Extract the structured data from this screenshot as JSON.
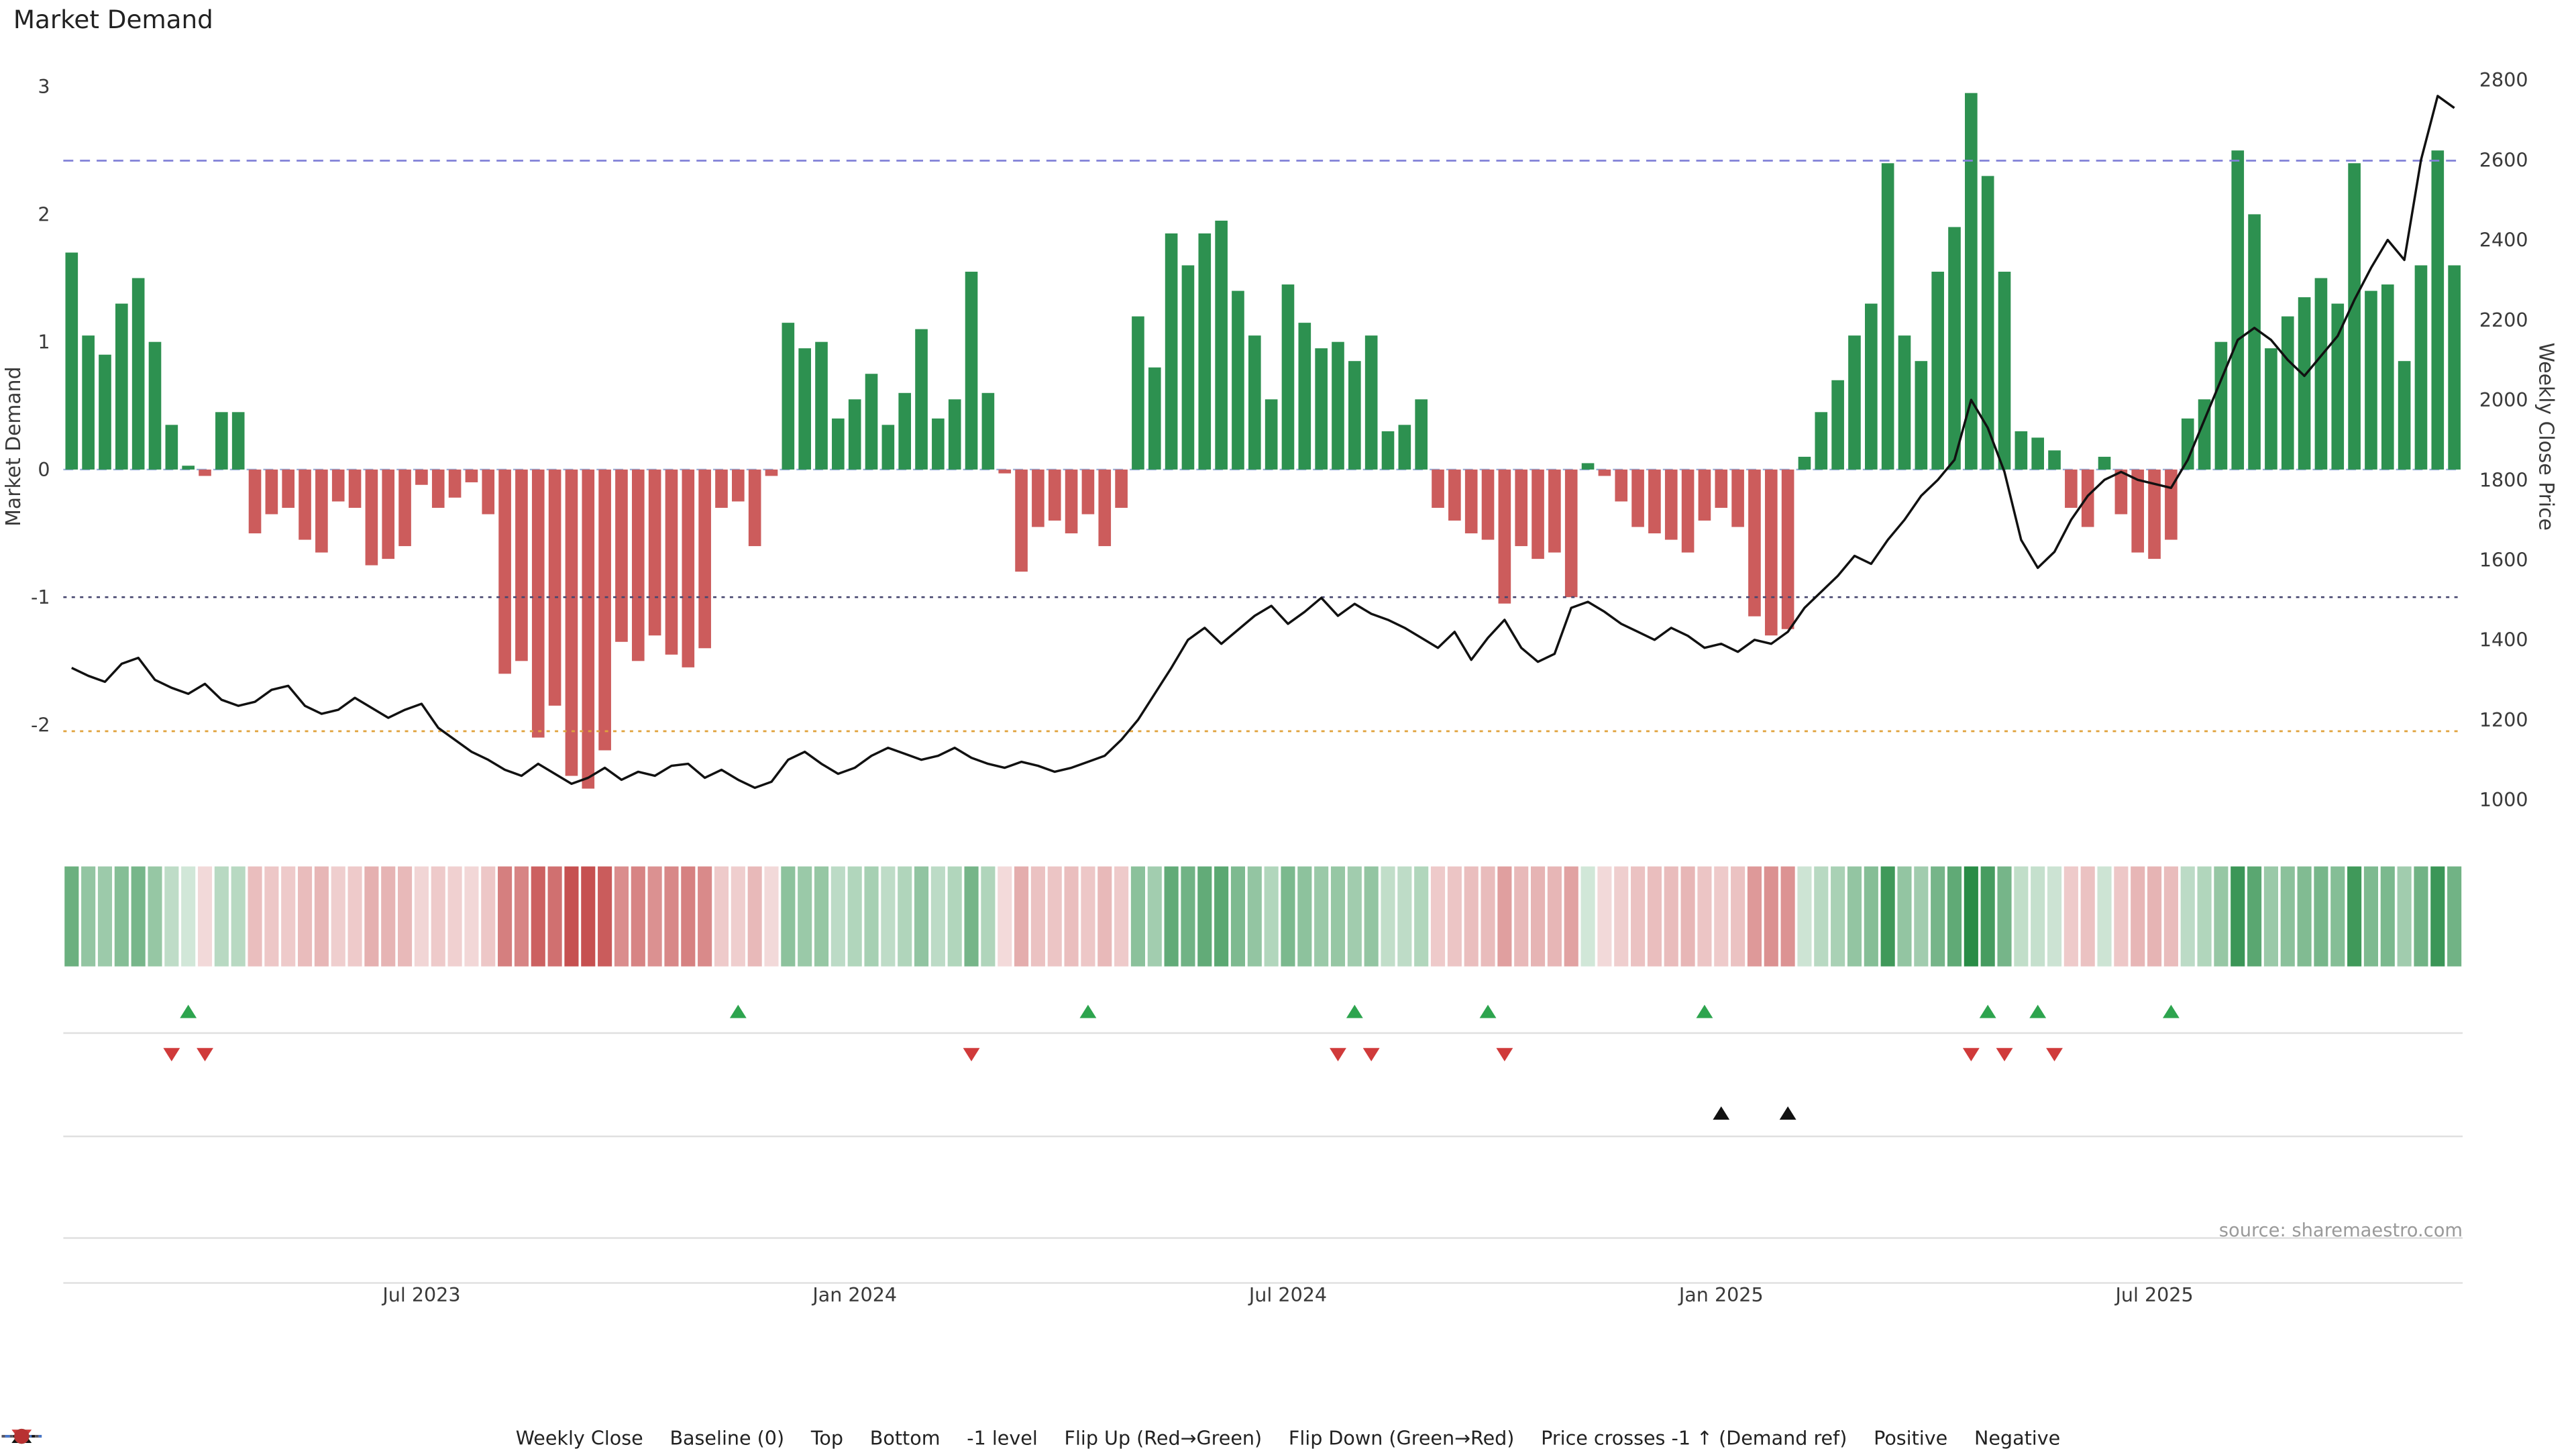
{
  "page": {
    "title": "Market Demand",
    "source": "source: sharemaestro.com"
  },
  "axes": {
    "left_label": "Market Demand",
    "right_label": "Weekly Close Price",
    "left_ticks": [
      3,
      2,
      1,
      0,
      -1,
      -2
    ],
    "right_ticks": [
      2800,
      2600,
      2400,
      2200,
      2000,
      1800,
      1600,
      1400,
      1200,
      1000
    ],
    "x_ticks": [
      {
        "label": "Jul 2023",
        "index": 21
      },
      {
        "label": "Jan 2024",
        "index": 47
      },
      {
        "label": "Jul 2024",
        "index": 73
      },
      {
        "label": "Jan 2025",
        "index": 99
      },
      {
        "label": "Jul 2025",
        "index": 125
      }
    ]
  },
  "colors": {
    "positive_bar": "#2d9150",
    "negative_bar": "#cc5c5c",
    "price_line": "#111111",
    "baseline": "#6f8fc9",
    "top_line": "#8181d8",
    "bottom_line": "#e0a23c",
    "minus1_line": "#45456e",
    "flip_up": "#2da44e",
    "flip_down": "#d03a3a",
    "price_cross": "#111111",
    "panel_line": "#e0e0e0",
    "tick_text": "#3a3a3a",
    "source_text": "#9a9a9a"
  },
  "legend": [
    {
      "label": "Weekly Close",
      "glyph": "solid-line",
      "color": "#111111"
    },
    {
      "label": "Baseline (0)",
      "glyph": "dashed-line",
      "color": "#4878cf"
    },
    {
      "label": "Top",
      "glyph": "dotted-line",
      "color": "#9999aa"
    },
    {
      "label": "Bottom",
      "glyph": "dotted-line",
      "color": "#dd9933"
    },
    {
      "label": "-1 level",
      "glyph": "dotted-line",
      "color": "#555566"
    },
    {
      "label": "Flip Up (Red→Green)",
      "glyph": "tri-up",
      "color": "#2da44e"
    },
    {
      "label": "Flip Down (Green→Red)",
      "glyph": "tri-down",
      "color": "#d03a3a"
    },
    {
      "label": "Price crosses -1 ↑ (Demand ref)",
      "glyph": "tri-up",
      "color": "#111111"
    },
    {
      "label": "Positive",
      "glyph": "dot",
      "color": "#2d9150"
    },
    {
      "label": "Negative",
      "glyph": "dot",
      "color": "#b83232"
    }
  ],
  "chart_data": {
    "type": "bar+line",
    "title": "Market Demand",
    "ylabel_left": "Market Demand",
    "ylabel_right": "Weekly Close Price",
    "ylim_left": [
      -2.6,
      3.05
    ],
    "ylim_right": [
      1000,
      2800
    ],
    "ref_lines": {
      "baseline": 0,
      "top": 2.42,
      "bottom": -2.05,
      "minus1": -1
    },
    "series": [
      {
        "name": "Market Demand",
        "type": "bar",
        "axis": "left",
        "values": [
          1.7,
          1.05,
          0.9,
          1.3,
          1.5,
          1.0,
          0.35,
          0.03,
          -0.05,
          0.45,
          0.45,
          -0.5,
          -0.35,
          -0.3,
          -0.55,
          -0.65,
          -0.25,
          -0.3,
          -0.75,
          -0.7,
          -0.6,
          -0.12,
          -0.3,
          -0.22,
          -0.1,
          -0.35,
          -1.6,
          -1.5,
          -2.1,
          -1.85,
          -2.4,
          -2.5,
          -2.2,
          -1.35,
          -1.5,
          -1.3,
          -1.45,
          -1.55,
          -1.4,
          -0.3,
          -0.25,
          -0.6,
          -0.05,
          1.15,
          0.95,
          1.0,
          0.4,
          0.55,
          0.75,
          0.35,
          0.6,
          1.1,
          0.4,
          0.55,
          1.55,
          0.6,
          -0.03,
          -0.8,
          -0.45,
          -0.4,
          -0.5,
          -0.35,
          -0.6,
          -0.3,
          1.2,
          0.8,
          1.85,
          1.6,
          1.85,
          1.95,
          1.4,
          1.05,
          0.55,
          1.45,
          1.15,
          0.95,
          1.0,
          0.85,
          1.05,
          0.3,
          0.35,
          0.55,
          -0.3,
          -0.4,
          -0.5,
          -0.55,
          -1.05,
          -0.6,
          -0.7,
          -0.65,
          -1.0,
          0.05,
          -0.05,
          -0.25,
          -0.45,
          -0.5,
          -0.55,
          -0.65,
          -0.4,
          -0.3,
          -0.45,
          -1.15,
          -1.3,
          -1.25,
          0.1,
          0.45,
          0.7,
          1.05,
          1.3,
          2.4,
          1.05,
          0.85,
          1.55,
          1.9,
          2.95,
          2.3,
          1.55,
          0.3,
          0.25,
          0.15,
          -0.3,
          -0.45,
          0.1,
          -0.35,
          -0.65,
          -0.7,
          -0.55,
          0.4,
          0.55,
          1.0,
          2.5,
          2.0,
          0.95,
          1.2,
          1.35,
          1.5,
          1.3,
          2.4,
          1.4,
          1.45,
          0.85,
          1.6,
          2.5,
          1.6
        ]
      },
      {
        "name": "Weekly Close",
        "type": "line",
        "axis": "right",
        "values": [
          1330,
          1310,
          1295,
          1340,
          1355,
          1300,
          1280,
          1265,
          1290,
          1250,
          1235,
          1245,
          1275,
          1285,
          1235,
          1215,
          1225,
          1255,
          1230,
          1205,
          1225,
          1240,
          1180,
          1150,
          1120,
          1100,
          1075,
          1060,
          1090,
          1065,
          1040,
          1055,
          1080,
          1050,
          1070,
          1060,
          1085,
          1090,
          1055,
          1075,
          1050,
          1030,
          1045,
          1100,
          1120,
          1090,
          1065,
          1080,
          1110,
          1130,
          1115,
          1100,
          1110,
          1130,
          1105,
          1090,
          1080,
          1095,
          1085,
          1070,
          1080,
          1095,
          1110,
          1150,
          1200,
          1265,
          1330,
          1400,
          1430,
          1390,
          1425,
          1460,
          1485,
          1440,
          1470,
          1505,
          1460,
          1490,
          1465,
          1450,
          1430,
          1405,
          1380,
          1420,
          1350,
          1405,
          1450,
          1380,
          1345,
          1365,
          1480,
          1495,
          1470,
          1440,
          1420,
          1400,
          1430,
          1410,
          1380,
          1390,
          1370,
          1400,
          1390,
          1420,
          1480,
          1520,
          1560,
          1610,
          1590,
          1650,
          1700,
          1760,
          1800,
          1850,
          2000,
          1930,
          1820,
          1650,
          1580,
          1620,
          1700,
          1760,
          1800,
          1820,
          1800,
          1790,
          1780,
          1850,
          1950,
          2050,
          2150,
          2180,
          2150,
          2100,
          2060,
          2110,
          2160,
          2250,
          2330,
          2400,
          2350,
          2600,
          2760,
          2730
        ]
      }
    ],
    "markers": {
      "flip_up_indices": [
        7,
        40,
        61,
        77,
        85,
        98,
        115,
        118,
        126
      ],
      "flip_down_indices": [
        6,
        8,
        54,
        76,
        78,
        86,
        114,
        116,
        119
      ],
      "price_cross_indices": [
        99,
        103
      ]
    },
    "heatmap": "same values as Market Demand series, green=positive red=negative, intensity by magnitude"
  }
}
